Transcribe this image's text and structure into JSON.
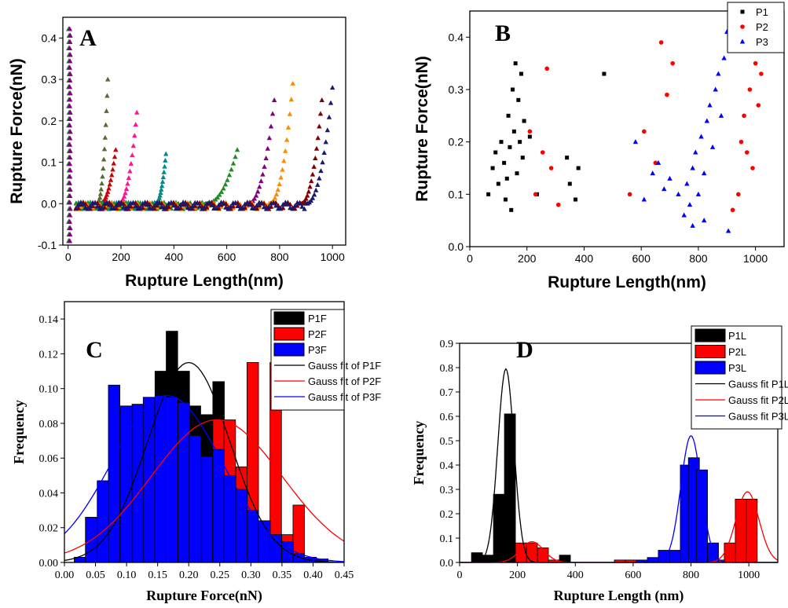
{
  "panels": {
    "A": {
      "label": "A"
    },
    "B": {
      "label": "B"
    },
    "C": {
      "label": "C"
    },
    "D": {
      "label": "D"
    }
  },
  "chart_data": [
    {
      "panel": "A",
      "type": "scatter",
      "xlabel": "Rupture Length(nm)",
      "ylabel": "Rupture Force(nN)",
      "xlim": [
        -20,
        1050
      ],
      "ylim": [
        -0.1,
        0.45
      ],
      "xticks": [
        0,
        200,
        400,
        600,
        800,
        1000
      ],
      "yticks": [
        -0.1,
        0.0,
        0.1,
        0.2,
        0.3,
        0.4
      ],
      "series": [
        {
          "color": "#556b2f",
          "onset": 110,
          "end": 150,
          "peak": 0.3
        },
        {
          "color": "#ff1493",
          "onset": 190,
          "end": 260,
          "peak": 0.22
        },
        {
          "color": "#cc0000",
          "onset": 120,
          "end": 180,
          "peak": 0.13
        },
        {
          "color": "#008b8b",
          "onset": 330,
          "end": 370,
          "peak": 0.12
        },
        {
          "color": "#228b22",
          "onset": 520,
          "end": 640,
          "peak": 0.13
        },
        {
          "color": "#800080",
          "onset": 680,
          "end": 780,
          "peak": 0.25
        },
        {
          "color": "#ff8c00",
          "onset": 760,
          "end": 850,
          "peak": 0.29
        },
        {
          "color": "#800000",
          "onset": 880,
          "end": 960,
          "peak": 0.25
        },
        {
          "color": "#191970",
          "onset": 900,
          "end": 1000,
          "peak": 0.28
        }
      ]
    },
    {
      "panel": "B",
      "type": "scatter",
      "xlabel": "Rupture Length(nm)",
      "ylabel": "Rupture Force(nN)",
      "xlim": [
        0,
        1100
      ],
      "ylim": [
        0,
        0.45
      ],
      "xticks": [
        0,
        200,
        400,
        600,
        800,
        1000
      ],
      "yticks": [
        0.0,
        0.1,
        0.2,
        0.3,
        0.4
      ],
      "legend": [
        "P1",
        "P2",
        "P3"
      ],
      "legend_position": "top-right",
      "series": [
        {
          "name": "P1",
          "color": "#000000",
          "marker": "square",
          "points": [
            [
              65,
              0.1
            ],
            [
              80,
              0.15
            ],
            [
              90,
              0.18
            ],
            [
              100,
              0.12
            ],
            [
              110,
              0.2
            ],
            [
              120,
              0.16
            ],
            [
              125,
              0.09
            ],
            [
              130,
              0.13
            ],
            [
              135,
              0.25
            ],
            [
              140,
              0.19
            ],
            [
              145,
              0.07
            ],
            [
              150,
              0.3
            ],
            [
              155,
              0.22
            ],
            [
              160,
              0.35
            ],
            [
              165,
              0.14
            ],
            [
              170,
              0.28
            ],
            [
              175,
              0.2
            ],
            [
              180,
              0.33
            ],
            [
              185,
              0.17
            ],
            [
              190,
              0.24
            ],
            [
              210,
              0.21
            ],
            [
              235,
              0.1
            ],
            [
              340,
              0.17
            ],
            [
              350,
              0.12
            ],
            [
              370,
              0.09
            ],
            [
              380,
              0.15
            ],
            [
              470,
              0.33
            ]
          ]
        },
        {
          "name": "P2",
          "color": "#ff0000",
          "marker": "circle",
          "points": [
            [
              210,
              0.22
            ],
            [
              230,
              0.1
            ],
            [
              255,
              0.18
            ],
            [
              270,
              0.34
            ],
            [
              285,
              0.15
            ],
            [
              310,
              0.08
            ],
            [
              560,
              0.1
            ],
            [
              610,
              0.22
            ],
            [
              650,
              0.16
            ],
            [
              670,
              0.39
            ],
            [
              690,
              0.29
            ],
            [
              710,
              0.35
            ],
            [
              920,
              0.07
            ],
            [
              940,
              0.1
            ],
            [
              950,
              0.2
            ],
            [
              960,
              0.25
            ],
            [
              970,
              0.18
            ],
            [
              980,
              0.3
            ],
            [
              990,
              0.15
            ],
            [
              1000,
              0.35
            ],
            [
              1010,
              0.27
            ],
            [
              1020,
              0.33
            ]
          ]
        },
        {
          "name": "P3",
          "color": "#0000ff",
          "marker": "triangle",
          "points": [
            [
              580,
              0.2
            ],
            [
              610,
              0.09
            ],
            [
              640,
              0.14
            ],
            [
              660,
              0.16
            ],
            [
              680,
              0.11
            ],
            [
              700,
              0.13
            ],
            [
              730,
              0.1
            ],
            [
              750,
              0.06
            ],
            [
              760,
              0.12
            ],
            [
              770,
              0.08
            ],
            [
              780,
              0.15
            ],
            [
              790,
              0.18
            ],
            [
              800,
              0.1
            ],
            [
              810,
              0.21
            ],
            [
              820,
              0.14
            ],
            [
              830,
              0.24
            ],
            [
              840,
              0.27
            ],
            [
              850,
              0.19
            ],
            [
              860,
              0.3
            ],
            [
              870,
              0.33
            ],
            [
              880,
              0.25
            ],
            [
              890,
              0.36
            ],
            [
              900,
              0.41
            ],
            [
              905,
              0.03
            ],
            [
              780,
              0.04
            ],
            [
              820,
              0.05
            ]
          ]
        }
      ]
    },
    {
      "panel": "C",
      "type": "bar",
      "xlabel": "Rupture Force(nN)",
      "ylabel": "Frequency",
      "xlim": [
        0,
        0.45
      ],
      "ylim": [
        0,
        0.15
      ],
      "xticks": [
        0.0,
        0.05,
        0.1,
        0.15,
        0.2,
        0.25,
        0.3,
        0.35,
        0.4,
        0.45
      ],
      "yticks": [
        0.0,
        0.02,
        0.04,
        0.06,
        0.08,
        0.1,
        0.12,
        0.14
      ],
      "bin_width": 0.0185,
      "legend_position": "top-right",
      "series": [
        {
          "name": "P1F",
          "color": "#000000",
          "centers": [
            0.099,
            0.118,
            0.136,
            0.155,
            0.173,
            0.192,
            0.21,
            0.229,
            0.248,
            0.266
          ],
          "values": [
            0.08,
            0.09,
            0.09,
            0.11,
            0.133,
            0.11,
            0.09,
            0.085,
            0.104,
            0.08
          ]
        },
        {
          "name": "P2F",
          "color": "#ff0000",
          "centers": [
            0.229,
            0.248,
            0.266,
            0.285,
            0.303,
            0.322,
            0.34,
            0.359,
            0.377,
            0.396
          ],
          "values": [
            0.058,
            0.082,
            0.082,
            0.055,
            0.115,
            0.02,
            0.115,
            0.016,
            0.033,
            0.0
          ]
        },
        {
          "name": "P3F",
          "color": "#0000ff",
          "centers": [
            0.025,
            0.043,
            0.062,
            0.08,
            0.099,
            0.118,
            0.136,
            0.155,
            0.173,
            0.192,
            0.21,
            0.229,
            0.248,
            0.266,
            0.285,
            0.303,
            0.322,
            0.34,
            0.359,
            0.377,
            0.396,
            0.415
          ],
          "values": [
            0.003,
            0.026,
            0.047,
            0.102,
            0.09,
            0.091,
            0.095,
            0.096,
            0.095,
            0.092,
            0.073,
            0.061,
            0.065,
            0.05,
            0.042,
            0.03,
            0.024,
            0.016,
            0.012,
            0.005,
            0.003,
            0.002
          ]
        },
        {
          "name": "Gauss fit of P1F",
          "color": "#000000",
          "type": "line",
          "mu": 0.2,
          "sigma": 0.066,
          "amp": 0.115
        },
        {
          "name": "Gauss fit of P2F",
          "color": "#ff0000",
          "type": "line",
          "mu": 0.245,
          "sigma": 0.105,
          "amp": 0.082
        },
        {
          "name": "Gauss fit of P3F",
          "color": "#0000ff",
          "type": "line",
          "mu": 0.165,
          "sigma": 0.088,
          "amp": 0.096
        }
      ]
    },
    {
      "panel": "D",
      "type": "bar",
      "xlabel": "Rupture Length (nm)",
      "ylabel": "Frequency",
      "xlim": [
        0,
        1100
      ],
      "ylim": [
        0,
        0.9
      ],
      "xticks": [
        0,
        200,
        400,
        600,
        800,
        1000
      ],
      "yticks": [
        0.0,
        0.1,
        0.2,
        0.3,
        0.4,
        0.5,
        0.6,
        0.7,
        0.8,
        0.9
      ],
      "bin_width": 38,
      "legend_position": "top-right",
      "series": [
        {
          "name": "P1L",
          "color": "#000000",
          "centers": [
            60,
            98,
            136,
            174,
            212,
            250,
            364
          ],
          "values": [
            0.04,
            0.03,
            0.28,
            0.61,
            0.02,
            0.0,
            0.03
          ]
        },
        {
          "name": "P2L",
          "color": "#ff0000",
          "centers": [
            212,
            250,
            288,
            326,
            516,
            554,
            592,
            630,
            668,
            706,
            896,
            934,
            972,
            1010
          ],
          "values": [
            0.08,
            0.08,
            0.06,
            0.01,
            0.0,
            0.01,
            0.01,
            0.01,
            0.02,
            0.04,
            0.01,
            0.08,
            0.26,
            0.26
          ]
        },
        {
          "name": "P3L",
          "color": "#0000ff",
          "centers": [
            592,
            630,
            668,
            706,
            744,
            782,
            810,
            838,
            876
          ],
          "values": [
            0.0,
            0.01,
            0.02,
            0.05,
            0.05,
            0.4,
            0.43,
            0.38,
            0.08
          ]
        },
        {
          "name": "Gauss fit P1L",
          "color": "#000000",
          "type": "line",
          "mu": 160,
          "sigma": 28,
          "amp": 0.795
        },
        {
          "name": "Gauss fit P2L",
          "color": "#ff0000",
          "type": "line",
          "mu": 250,
          "sigma": 40,
          "amp": 0.085,
          "mu2": 995,
          "sigma2": 40,
          "amp2": 0.29
        },
        {
          "name": "Gauss fit P3L",
          "color": "#0000ff",
          "type": "line",
          "mu": 800,
          "sigma": 35,
          "amp": 0.52
        }
      ]
    }
  ]
}
